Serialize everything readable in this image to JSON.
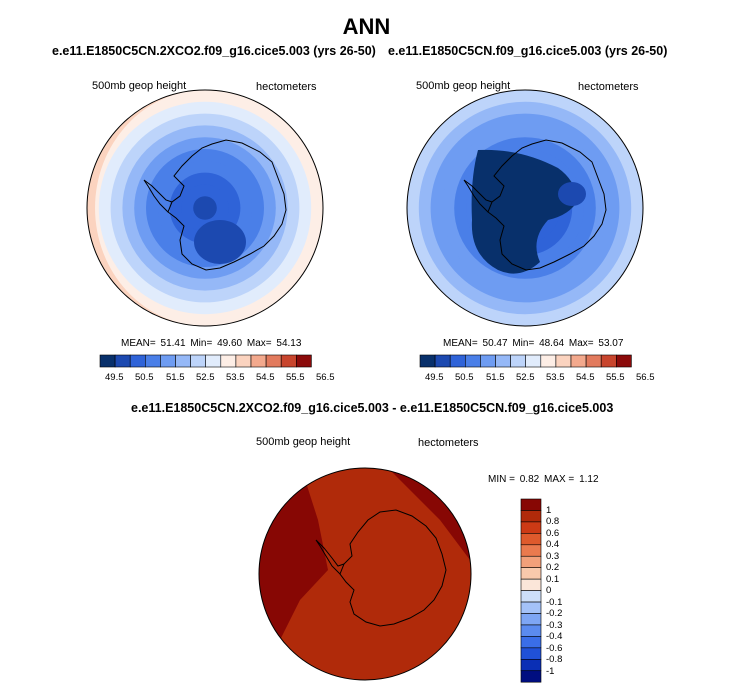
{
  "colors": {
    "abs_scale": [
      "#08306b",
      "#1c49b0",
      "#2f63d8",
      "#4a7fe8",
      "#6e9cf2",
      "#95b8f7",
      "#bdd4fa",
      "#e1ecfc",
      "#fdeee6",
      "#fbd3bf",
      "#f3a98d",
      "#e27a5d",
      "#c8452d",
      "#8b0a0a"
    ],
    "diff_scale": [
      "#000e80",
      "#0a2fb5",
      "#2051d8",
      "#3a6ee8",
      "#5b8bef",
      "#7ea6f4",
      "#a4c2f8",
      "#cddff9",
      "#fbe6d9",
      "#f8c9ac",
      "#f2a07a",
      "#ea7a4e",
      "#de5a2c",
      "#cc3a15",
      "#b02a0a",
      "#870704"
    ]
  },
  "chart_data": [
    {
      "type": "heatmap",
      "projection": "south-polar-stereographic",
      "case_title": "e.e11.E1850C5CN.2XCO2.f09_g16.cice5.003 (yrs 26-50)",
      "variable": "500mb geop height",
      "units": "hectometers",
      "stats": {
        "mean_label": "MEAN=",
        "mean": "51.41",
        "min_label": "Min=",
        "min": "49.60",
        "max_label": "Max=",
        "max": "54.13"
      },
      "colorbar_ticks": [
        "49.5",
        "50.5",
        "51.5",
        "52.5",
        "53.5",
        "54.5",
        "55.5",
        "56.5"
      ],
      "contour_levels": [
        49.5,
        50,
        50.5,
        51,
        51.5,
        52,
        52.5,
        53,
        53.5,
        54,
        54.5,
        55,
        55.5,
        56,
        56.5
      ]
    },
    {
      "type": "heatmap",
      "projection": "south-polar-stereographic",
      "case_title": "e.e11.E1850C5CN.f09_g16.cice5.003 (yrs 26-50)",
      "variable": "500mb geop height",
      "units": "hectometers",
      "stats": {
        "mean_label": "MEAN=",
        "mean": "50.47",
        "min_label": "Min=",
        "min": "48.64",
        "max_label": "Max=",
        "max": "53.07"
      },
      "colorbar_ticks": [
        "49.5",
        "50.5",
        "51.5",
        "52.5",
        "53.5",
        "54.5",
        "55.5",
        "56.5"
      ],
      "contour_levels": [
        49.5,
        50,
        50.5,
        51,
        51.5,
        52,
        52.5,
        53,
        53.5,
        54,
        54.5,
        55,
        55.5,
        56,
        56.5
      ]
    },
    {
      "type": "heatmap",
      "projection": "south-polar-stereographic",
      "case_title": "e.e11.E1850C5CN.2XCO2.f09_g16.cice5.003 - e.e11.E1850C5CN.f09_g16.cice5.003",
      "variable": "500mb geop height",
      "units": "hectometers",
      "stats": {
        "min_label": "MIN =",
        "min": "0.82",
        "max_label": "MAX =",
        "max": "1.12"
      },
      "colorbar_ticks": [
        "1",
        "0.8",
        "0.6",
        "0.4",
        "0.3",
        "0.2",
        "0.1",
        "0",
        "-0.1",
        "-0.2",
        "-0.3",
        "-0.4",
        "-0.6",
        "-0.8",
        "-1"
      ],
      "contour_levels": [
        -1,
        -0.8,
        -0.6,
        -0.4,
        -0.3,
        -0.2,
        -0.1,
        0,
        0.1,
        0.2,
        0.3,
        0.4,
        0.6,
        0.8,
        1
      ]
    }
  ],
  "page": {
    "title": "ANN"
  }
}
